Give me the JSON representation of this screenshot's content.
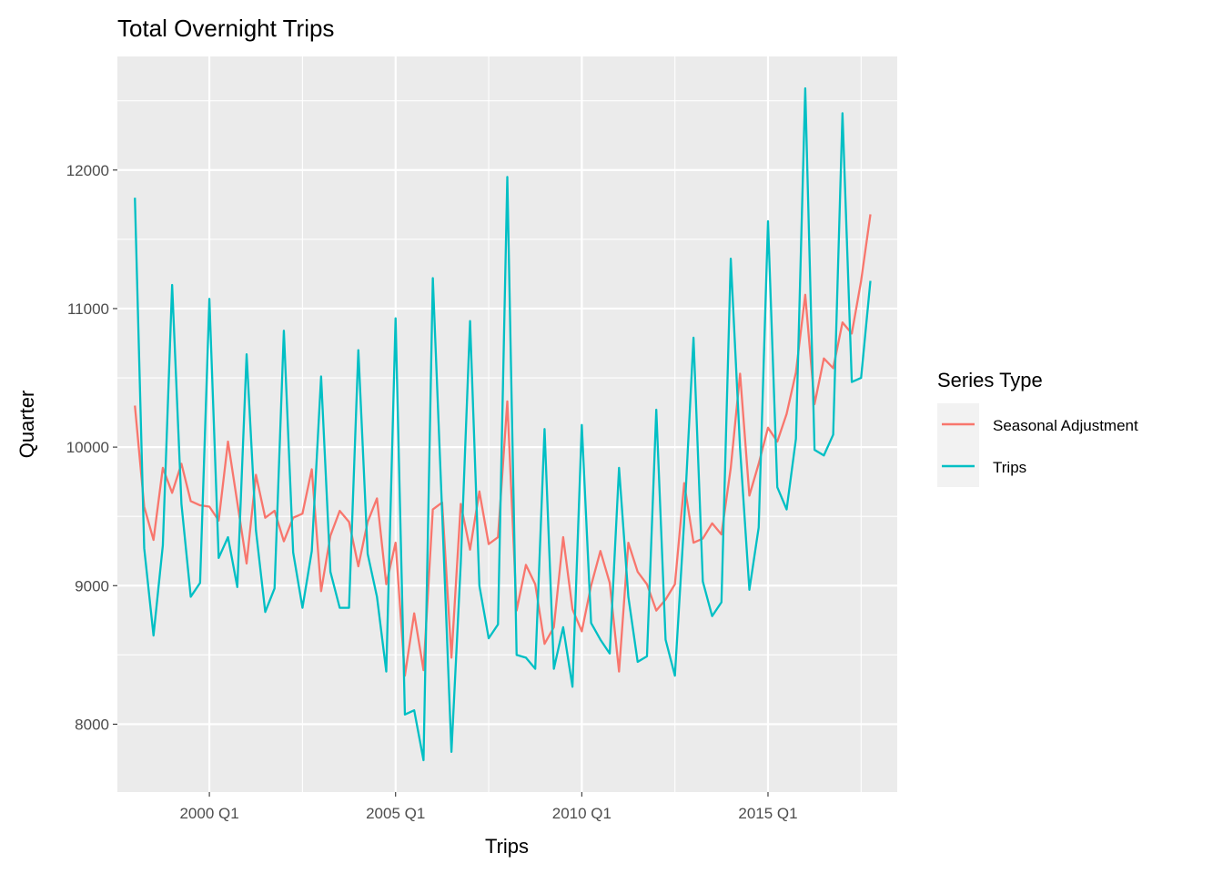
{
  "chart_data": {
    "type": "line",
    "title": "Total Overnight Trips",
    "xlabel": "Trips",
    "ylabel": "Quarter",
    "x_ticks": [
      {
        "year": 2000,
        "label": "2000 Q1"
      },
      {
        "year": 2005,
        "label": "2005 Q1"
      },
      {
        "year": 2010,
        "label": "2010 Q1"
      },
      {
        "year": 2015,
        "label": "2015 Q1"
      }
    ],
    "y_ticks": [
      8000,
      9000,
      10000,
      11000,
      12000
    ],
    "xlim": [
      1997.53,
      2018.47
    ],
    "ylim": [
      7510,
      12820
    ],
    "grid": true,
    "legend": {
      "title": "Series Type",
      "position": "right"
    },
    "start": {
      "year": 1998,
      "quarter": 1
    },
    "series": [
      {
        "name": "Seasonal Adjustment",
        "color": "#F8766D",
        "values": [
          10300,
          9570,
          9330,
          9850,
          9670,
          9880,
          9610,
          9580,
          9570,
          9470,
          10040,
          9600,
          9160,
          9800,
          9490,
          9540,
          9320,
          9490,
          9520,
          9840,
          8960,
          9360,
          9540,
          9460,
          9140,
          9460,
          9630,
          9010,
          9310,
          8350,
          8800,
          8390,
          9550,
          9600,
          8480,
          9590,
          9260,
          9680,
          9300,
          9350,
          10330,
          8820,
          9150,
          9010,
          8580,
          8700,
          9350,
          8830,
          8670,
          9000,
          9250,
          9020,
          8380,
          9310,
          9100,
          9010,
          8820,
          8900,
          9010,
          9740,
          9310,
          9340,
          9450,
          9370,
          9850,
          10530,
          9650,
          9880,
          10140,
          10040,
          10240,
          10540,
          11100,
          10310,
          10640,
          10570,
          10900,
          10820,
          11200,
          11680
        ]
      },
      {
        "name": "Trips",
        "color": "#00BFC4",
        "values": [
          11800,
          9270,
          8640,
          9290,
          11170,
          9590,
          8920,
          9020,
          11070,
          9200,
          9350,
          8990,
          10670,
          9400,
          8810,
          8980,
          10840,
          9240,
          8840,
          9250,
          10510,
          9100,
          8840,
          8840,
          10700,
          9230,
          8920,
          8380,
          10930,
          8070,
          8100,
          7740,
          11220,
          9530,
          7800,
          9160,
          10910,
          9000,
          8620,
          8720,
          11950,
          8500,
          8480,
          8400,
          10130,
          8400,
          8700,
          8270,
          10160,
          8730,
          8610,
          8510,
          9850,
          8920,
          8450,
          8490,
          10270,
          8610,
          8350,
          9470,
          10790,
          9030,
          8780,
          8880,
          11360,
          9990,
          8970,
          9420,
          11630,
          9710,
          9550,
          10060,
          12590,
          9980,
          9940,
          10090,
          12410,
          10470,
          10500,
          11200
        ]
      }
    ]
  }
}
